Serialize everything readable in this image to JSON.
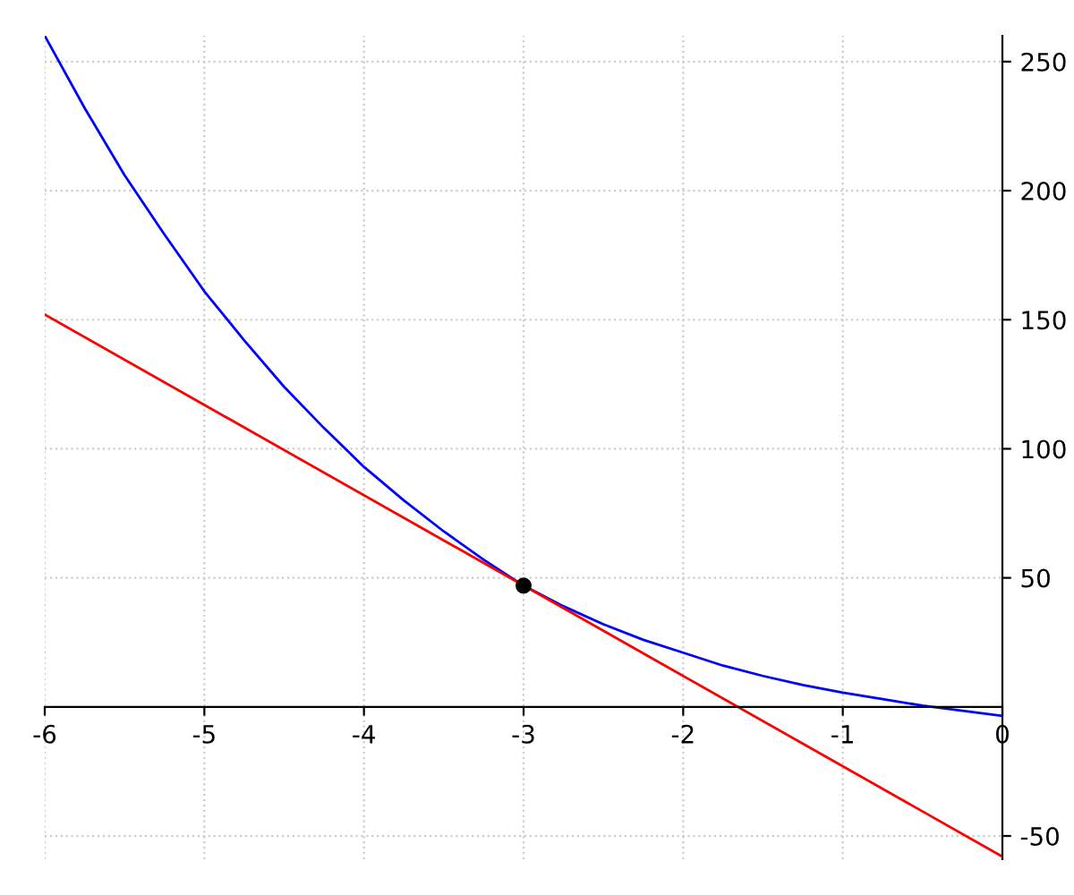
{
  "chart_data": {
    "type": "line",
    "series": [
      {
        "color": "#0000ff",
        "x": [
          -6,
          -5.75,
          -5.5,
          -5.25,
          -5,
          -4.75,
          -4.5,
          -4.25,
          -4,
          -3.75,
          -3.5,
          -3.25,
          -3,
          -2.75,
          -2.5,
          -2.25,
          -2,
          -1.75,
          -1.5,
          -1.25,
          -1,
          -0.75,
          -0.5,
          -0.25,
          0
        ],
        "values": [
          260,
          232,
          206,
          183,
          161,
          142,
          124,
          108,
          93,
          80,
          68,
          57,
          47,
          39,
          32,
          26,
          21,
          16,
          12,
          8.5,
          5.5,
          3,
          0.5,
          -1.5,
          -3.5
        ]
      },
      {
        "color": "#ff0000",
        "x": [
          -6,
          0
        ],
        "values": [
          152,
          -58
        ]
      },
      {
        "type": "scatter",
        "color": "#000000",
        "marker": "circle",
        "x": [
          -3
        ],
        "values": [
          47
        ]
      }
    ],
    "xlim": [
      -6,
      0
    ],
    "ylim": [
      -59,
      260
    ],
    "xticks": [
      -6,
      -5,
      -4,
      -3,
      -2,
      -1,
      0
    ],
    "yticks": [
      -50,
      50,
      100,
      150,
      200,
      250
    ],
    "grid": true,
    "marker": "none",
    "line_style": "solid"
  }
}
